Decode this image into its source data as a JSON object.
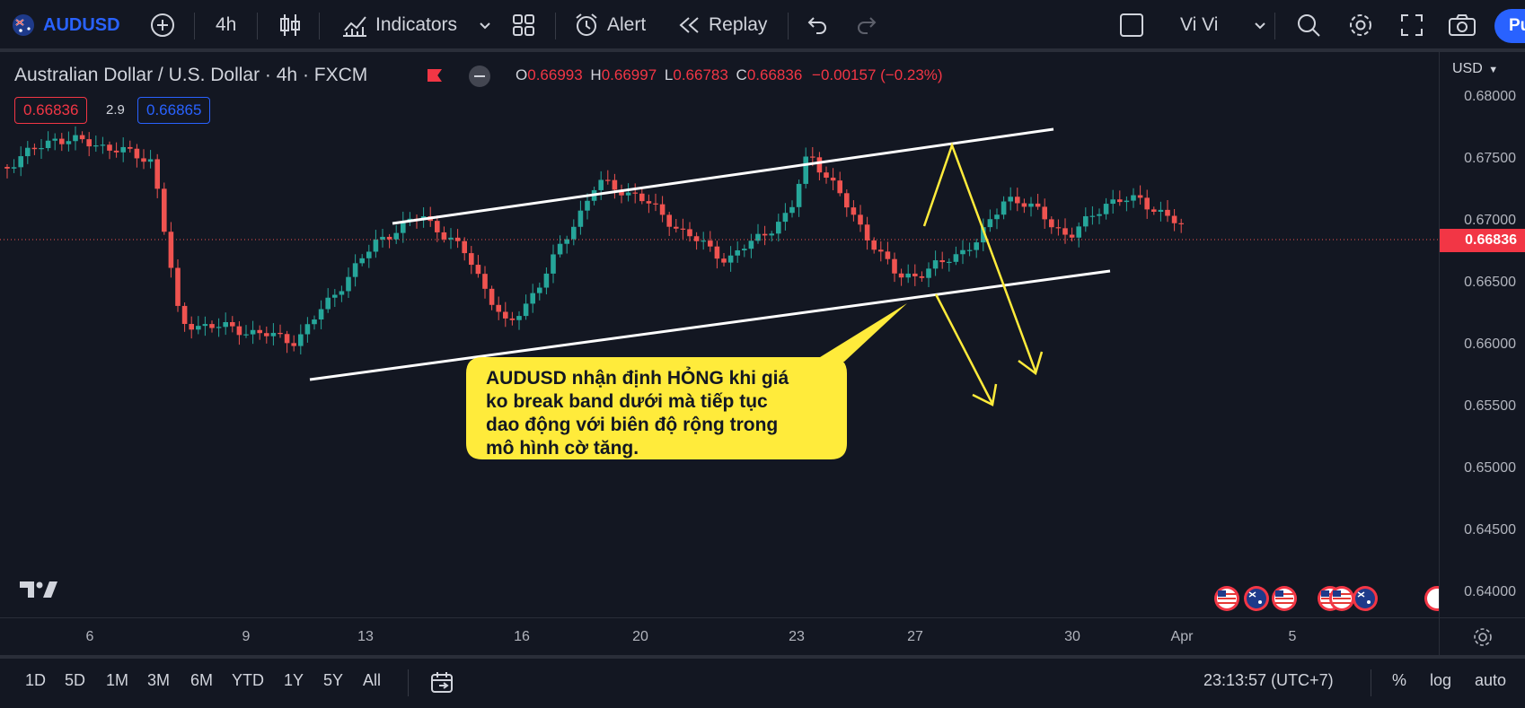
{
  "toolbar": {
    "symbol": "AUDUSD",
    "interval": "4h",
    "indicators": "Indicators",
    "alert": "Alert",
    "replay": "Replay",
    "user": "Vi Vi",
    "publish": "Pu"
  },
  "legend": {
    "title": "Australian Dollar / U.S. Dollar · 4h · FXCM",
    "o_label": "O",
    "o": "0.66993",
    "h_label": "H",
    "h": "0.66997",
    "l_label": "L",
    "l": "0.66783",
    "c_label": "C",
    "c": "0.66836",
    "change": "−0.00157 (−0.23%)",
    "sell_price": "0.66836",
    "spread": "2.9",
    "buy_price": "0.66865"
  },
  "price_axis": {
    "currency": "USD",
    "current_price": "0.66836",
    "ticks": [
      "0.68000",
      "0.67500",
      "0.67000",
      "0.66500",
      "0.66000",
      "0.65500",
      "0.65000",
      "0.64500",
      "0.64000"
    ]
  },
  "time_axis": {
    "ticks": [
      "6",
      "9",
      "13",
      "16",
      "20",
      "23",
      "27",
      "30",
      "Apr",
      "5"
    ]
  },
  "annotation": {
    "text_lines": [
      "AUDUSD nhận định HỎNG khi giá",
      "ko break band dưới mà tiếp tục",
      "dao động với biên độ rộng trong",
      "mô hình cờ tăng."
    ]
  },
  "bottom": {
    "ranges": [
      "1D",
      "5D",
      "1M",
      "3M",
      "6M",
      "YTD",
      "1Y",
      "5Y",
      "All"
    ],
    "clock": "23:13:57 (UTC+7)",
    "percent": "%",
    "log": "log",
    "auto": "auto"
  },
  "colors": {
    "background": "#131722",
    "up": "#26a69a",
    "down": "#ef5350",
    "accent": "#2962ff",
    "annotation_fill": "#ffeb3b"
  }
}
